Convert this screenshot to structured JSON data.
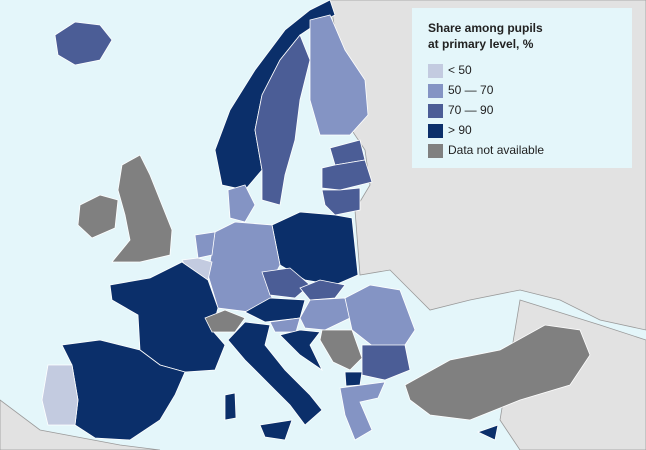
{
  "legend": {
    "title": [
      "Share among pupils",
      "at primary level, %"
    ],
    "items": [
      {
        "label": "< 50",
        "color": "#c3cbe0"
      },
      {
        "label": "50 — 70",
        "color": "#8494c4"
      },
      {
        "label": "70 — 90",
        "color": "#4b5d96"
      },
      {
        "label": "> 90",
        "color": "#0b2f6a"
      },
      {
        "label": "Data not available",
        "color": "#808080"
      }
    ]
  }
}
